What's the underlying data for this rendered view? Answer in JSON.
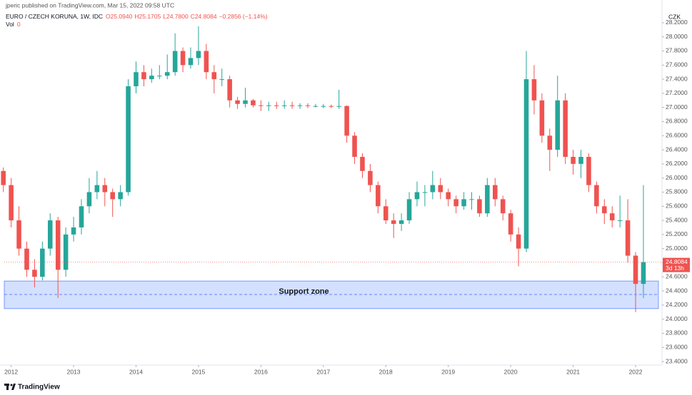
{
  "header": {
    "publisher": "jperic published on TradingView.com, Mar 15, 2022 09:58 UTC",
    "symbol": "EURO / CZECH KORUNA, 1W, IDC",
    "open": "O25.0940",
    "high": "H25.1705",
    "low": "L24.7800",
    "close": "C24.8084",
    "change": "−0.2856 (−1.14%)",
    "vol_label": "Vol",
    "vol_value": "0",
    "currency": "CZK"
  },
  "footer": {
    "brand": "TradingView"
  },
  "chart_data": {
    "type": "candlestick",
    "up_color": "#26a69a",
    "down_color": "#ef5350",
    "x": [
      2011.875,
      2012,
      2012.125,
      2012.25,
      2012.375,
      2012.5,
      2012.625,
      2012.75,
      2012.875,
      2013,
      2013.125,
      2013.25,
      2013.375,
      2013.5,
      2013.625,
      2013.75,
      2013.875,
      2014,
      2014.125,
      2014.25,
      2014.375,
      2014.5,
      2014.625,
      2014.75,
      2014.875,
      2015,
      2015.125,
      2015.25,
      2015.375,
      2015.5,
      2015.625,
      2015.75,
      2015.875,
      2016,
      2016.125,
      2016.25,
      2016.375,
      2016.5,
      2016.625,
      2016.75,
      2016.875,
      2017,
      2017.125,
      2017.25,
      2017.375,
      2017.5,
      2017.625,
      2017.75,
      2017.875,
      2018,
      2018.125,
      2018.25,
      2018.375,
      2018.5,
      2018.625,
      2018.75,
      2018.875,
      2019,
      2019.125,
      2019.25,
      2019.375,
      2019.5,
      2019.625,
      2019.75,
      2019.875,
      2020,
      2020.125,
      2020.25,
      2020.375,
      2020.5,
      2020.625,
      2020.75,
      2020.875,
      2021,
      2021.125,
      2021.25,
      2021.375,
      2021.5,
      2021.625,
      2021.75,
      2021.875,
      2022,
      2022.125
    ],
    "open": [
      26.1,
      25.9,
      25.4,
      25.0,
      24.7,
      24.6,
      25.0,
      25.4,
      24.7,
      25.2,
      25.3,
      25.6,
      25.8,
      25.9,
      25.8,
      25.7,
      25.8,
      27.3,
      27.5,
      27.4,
      27.45,
      27.45,
      27.5,
      27.8,
      27.6,
      27.7,
      27.8,
      27.5,
      27.4,
      27.4,
      27.1,
      27.05,
      27.1,
      27.03,
      27.02,
      27.03,
      27.02,
      27.03,
      27.02,
      27.03,
      27.02,
      27.02,
      27.02,
      27.01,
      27.02,
      26.6,
      26.3,
      26.1,
      25.9,
      25.6,
      25.4,
      25.35,
      25.4,
      25.7,
      25.8,
      25.8,
      25.9,
      25.8,
      25.7,
      25.6,
      25.7,
      25.7,
      25.5,
      25.9,
      25.7,
      25.5,
      25.2,
      25.0,
      27.4,
      27.1,
      26.6,
      26.4,
      27.1,
      26.3,
      26.2,
      26.3,
      25.9,
      25.6,
      25.5,
      25.4,
      25.4,
      24.9,
      24.5
    ],
    "high": [
      26.15,
      26.0,
      25.6,
      25.1,
      24.85,
      25.1,
      25.5,
      25.45,
      25.3,
      25.45,
      25.7,
      26.0,
      26.1,
      26.0,
      25.85,
      25.9,
      27.4,
      27.65,
      27.6,
      27.55,
      27.6,
      27.75,
      28.05,
      27.85,
      27.85,
      28.15,
      27.9,
      27.6,
      27.55,
      27.45,
      27.15,
      27.28,
      27.12,
      27.1,
      27.08,
      27.08,
      27.1,
      27.08,
      27.06,
      27.06,
      27.05,
      27.05,
      27.04,
      27.25,
      27.03,
      26.65,
      26.35,
      26.2,
      25.95,
      25.7,
      25.5,
      25.5,
      25.8,
      25.95,
      25.9,
      26.1,
      26.0,
      25.85,
      25.75,
      25.8,
      25.8,
      25.75,
      26.0,
      26.0,
      25.75,
      25.55,
      25.3,
      27.8,
      27.6,
      27.2,
      26.7,
      27.45,
      27.2,
      26.4,
      26.4,
      26.35,
      25.95,
      25.7,
      25.6,
      25.75,
      25.7,
      24.95,
      25.9
    ],
    "low": [
      25.8,
      25.3,
      24.9,
      24.6,
      24.45,
      24.55,
      24.9,
      24.3,
      24.6,
      25.1,
      25.2,
      25.5,
      25.7,
      25.6,
      25.45,
      25.6,
      25.75,
      27.2,
      27.3,
      27.35,
      27.4,
      27.4,
      27.45,
      27.5,
      27.55,
      27.6,
      27.4,
      27.2,
      27.3,
      27.0,
      26.98,
      27.0,
      27.0,
      26.95,
      26.95,
      26.98,
      26.98,
      26.98,
      26.98,
      26.99,
      27.0,
      26.99,
      26.99,
      26.98,
      26.5,
      26.2,
      26.0,
      25.8,
      25.5,
      25.35,
      25.15,
      25.25,
      25.35,
      25.6,
      25.6,
      25.7,
      25.7,
      25.6,
      25.5,
      25.55,
      25.55,
      25.45,
      25.45,
      25.6,
      25.4,
      25.1,
      24.75,
      24.95,
      26.9,
      26.5,
      26.1,
      26.3,
      26.2,
      26.05,
      26.0,
      25.8,
      25.5,
      25.35,
      25.3,
      25.3,
      24.8,
      24.1,
      24.3
    ],
    "close": [
      25.9,
      25.4,
      25.0,
      24.7,
      24.6,
      25.0,
      25.4,
      24.7,
      25.2,
      25.3,
      25.6,
      25.8,
      25.9,
      25.8,
      25.7,
      25.8,
      27.3,
      27.5,
      27.4,
      27.45,
      27.45,
      27.5,
      27.8,
      27.6,
      27.7,
      27.8,
      27.5,
      27.4,
      27.4,
      27.1,
      27.05,
      27.1,
      27.03,
      27.02,
      27.03,
      27.02,
      27.03,
      27.02,
      27.03,
      27.02,
      27.02,
      27.02,
      27.01,
      27.02,
      26.6,
      26.3,
      26.1,
      25.9,
      25.6,
      25.4,
      25.35,
      25.4,
      25.7,
      25.8,
      25.8,
      25.9,
      25.8,
      25.7,
      25.6,
      25.7,
      25.7,
      25.5,
      25.9,
      25.7,
      25.5,
      25.2,
      25.0,
      27.4,
      27.1,
      26.6,
      26.4,
      27.1,
      26.3,
      26.2,
      26.3,
      25.9,
      25.6,
      25.5,
      25.4,
      25.4,
      24.9,
      24.5,
      24.8084
    ],
    "last_value": 24.8084,
    "last_countdown": "3d 13h",
    "zone": {
      "label": "Support zone",
      "from": 24.15,
      "to": 24.54,
      "mid": 24.35,
      "color": "#2962ff"
    },
    "xlim": [
      2011.89,
      2022.4
    ],
    "ylim": [
      23.35,
      28.3
    ],
    "xticks": [
      2012,
      2013,
      2014,
      2015,
      2016,
      2017,
      2018,
      2019,
      2020,
      2021,
      2022
    ],
    "yticks": [
      {
        "value": 23.4,
        "label": "23.4000"
      },
      {
        "value": 23.6,
        "label": "23.6000"
      },
      {
        "value": 23.8,
        "label": "23.8000"
      },
      {
        "value": 24.0,
        "label": "24.0000"
      },
      {
        "value": 24.2,
        "label": "24.2000"
      },
      {
        "value": 24.4,
        "label": "24.4000"
      },
      {
        "value": 24.6,
        "label": "24.6000"
      },
      {
        "value": 24.8,
        "label": "24.8000"
      },
      {
        "value": 25.0,
        "label": "25.0000"
      },
      {
        "value": 25.2,
        "label": "25.2000"
      },
      {
        "value": 25.4,
        "label": "25.4000"
      },
      {
        "value": 25.6,
        "label": "25.6000"
      },
      {
        "value": 25.8,
        "label": "25.8000"
      },
      {
        "value": 26.0,
        "label": "26.0000"
      },
      {
        "value": 26.2,
        "label": "26.2000"
      },
      {
        "value": 26.4,
        "label": "26.4000"
      },
      {
        "value": 26.6,
        "label": "26.6000"
      },
      {
        "value": 26.8,
        "label": "26.8000"
      },
      {
        "value": 27.0,
        "label": "27.0000"
      },
      {
        "value": 27.2,
        "label": "27.2000"
      },
      {
        "value": 27.4,
        "label": "27.4000"
      },
      {
        "value": 27.6,
        "label": "27.6000"
      },
      {
        "value": 27.8,
        "label": "27.8000"
      },
      {
        "value": 28.0,
        "label": "28.0000"
      },
      {
        "value": 28.2,
        "label": "28.2000"
      }
    ]
  }
}
